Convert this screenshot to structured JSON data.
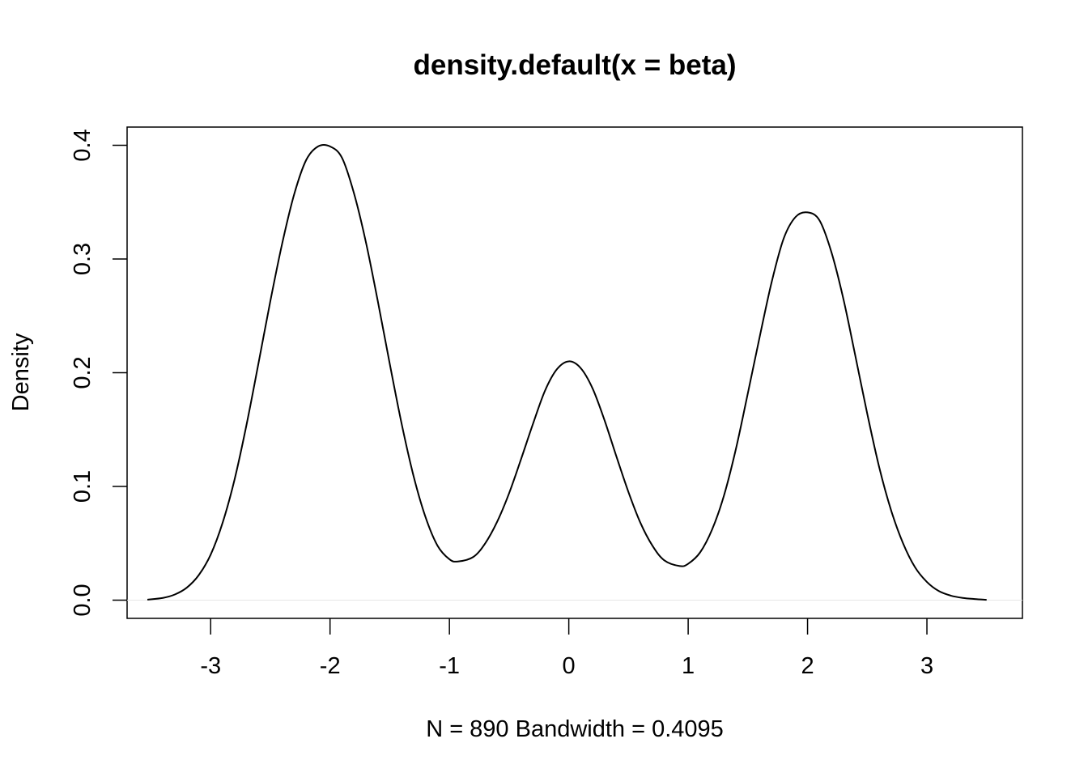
{
  "chart_data": {
    "type": "line",
    "title": "density.default(x = beta)",
    "xlabel": "N = 890   Bandwidth = 0.4095",
    "ylabel": "Density",
    "xlim": [
      -3.7,
      3.8
    ],
    "ylim": [
      -0.016,
      0.416
    ],
    "x_ticks": [
      -3,
      -2,
      -1,
      0,
      1,
      2,
      3
    ],
    "x_tick_labels": [
      "-3",
      "-2",
      "-1",
      "0",
      "1",
      "2",
      "3"
    ],
    "y_ticks": [
      0.0,
      0.1,
      0.2,
      0.3,
      0.4
    ],
    "y_tick_labels": [
      "0.0",
      "0.1",
      "0.2",
      "0.3",
      "0.4"
    ],
    "grid": false,
    "baseline": 0,
    "series": [
      {
        "color": "#000000",
        "x": [
          -3.53,
          -3.4,
          -3.3,
          -3.2,
          -3.1,
          -3.0,
          -2.9,
          -2.8,
          -2.7,
          -2.6,
          -2.5,
          -2.4,
          -2.3,
          -2.2,
          -2.1,
          -2.0,
          -1.9,
          -1.8,
          -1.7,
          -1.6,
          -1.5,
          -1.4,
          -1.3,
          -1.2,
          -1.1,
          -1.0,
          -0.93,
          -0.8,
          -0.7,
          -0.6,
          -0.5,
          -0.4,
          -0.3,
          -0.2,
          -0.1,
          0.0,
          0.1,
          0.2,
          0.3,
          0.4,
          0.5,
          0.6,
          0.7,
          0.8,
          0.93,
          1.0,
          1.1,
          1.2,
          1.3,
          1.4,
          1.5,
          1.6,
          1.7,
          1.8,
          1.9,
          2.0,
          2.1,
          2.2,
          2.3,
          2.4,
          2.5,
          2.6,
          2.7,
          2.8,
          2.9,
          3.0,
          3.1,
          3.2,
          3.3,
          3.4,
          3.5
        ],
        "y": [
          0.0005,
          0.002,
          0.005,
          0.011,
          0.022,
          0.04,
          0.068,
          0.106,
          0.154,
          0.208,
          0.263,
          0.314,
          0.357,
          0.387,
          0.399,
          0.399,
          0.389,
          0.358,
          0.315,
          0.263,
          0.208,
          0.155,
          0.109,
          0.073,
          0.048,
          0.036,
          0.034,
          0.038,
          0.05,
          0.069,
          0.094,
          0.124,
          0.155,
          0.184,
          0.203,
          0.21,
          0.204,
          0.186,
          0.158,
          0.126,
          0.095,
          0.068,
          0.048,
          0.035,
          0.03,
          0.032,
          0.042,
          0.062,
          0.092,
          0.133,
          0.182,
          0.232,
          0.28,
          0.318,
          0.337,
          0.341,
          0.334,
          0.306,
          0.265,
          0.215,
          0.164,
          0.117,
          0.079,
          0.05,
          0.029,
          0.016,
          0.008,
          0.004,
          0.002,
          0.001,
          0.0003
        ]
      }
    ]
  }
}
